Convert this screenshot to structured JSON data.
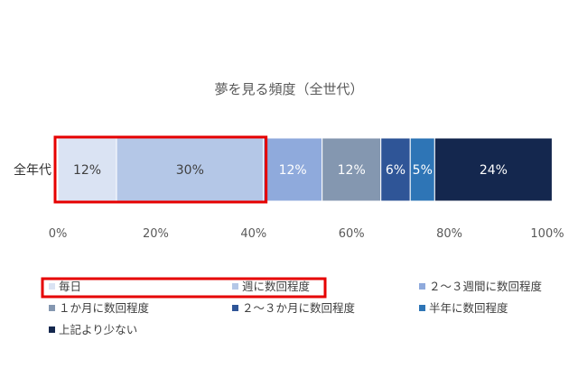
{
  "chart_data": {
    "type": "bar",
    "orientation": "horizontal",
    "stacked": true,
    "title": "夢を見る頻度（全世代）",
    "categories": [
      "全年代"
    ],
    "series": [
      {
        "name": "毎日",
        "values": [
          12
        ],
        "label": "12%",
        "color": "#dae3f3"
      },
      {
        "name": "週に数回程度",
        "values": [
          30
        ],
        "label": "30%",
        "color": "#b4c7e7"
      },
      {
        "name": "２～３週間に数回程度",
        "values": [
          12
        ],
        "label": "12%",
        "color": "#8faadc"
      },
      {
        "name": "１か月に数回程度",
        "values": [
          12
        ],
        "label": "12%",
        "color": "#8497b0"
      },
      {
        "name": "２～３か月に数回程度",
        "values": [
          6
        ],
        "label": "6%",
        "color": "#2f5597"
      },
      {
        "name": "半年に数回程度",
        "values": [
          5
        ],
        "label": "5%",
        "color": "#2e75b6"
      },
      {
        "name": "上記より少ない",
        "values": [
          24
        ],
        "label": "24%",
        "color": "#14274e"
      }
    ],
    "xlim": [
      0,
      100
    ],
    "xticks": [
      "0%",
      "20%",
      "40%",
      "60%",
      "80%",
      "100%"
    ],
    "grid": false,
    "legend": "bottom",
    "highlight": {
      "color": "#e60000",
      "series": [
        "毎日",
        "週に数回程度"
      ]
    }
  }
}
